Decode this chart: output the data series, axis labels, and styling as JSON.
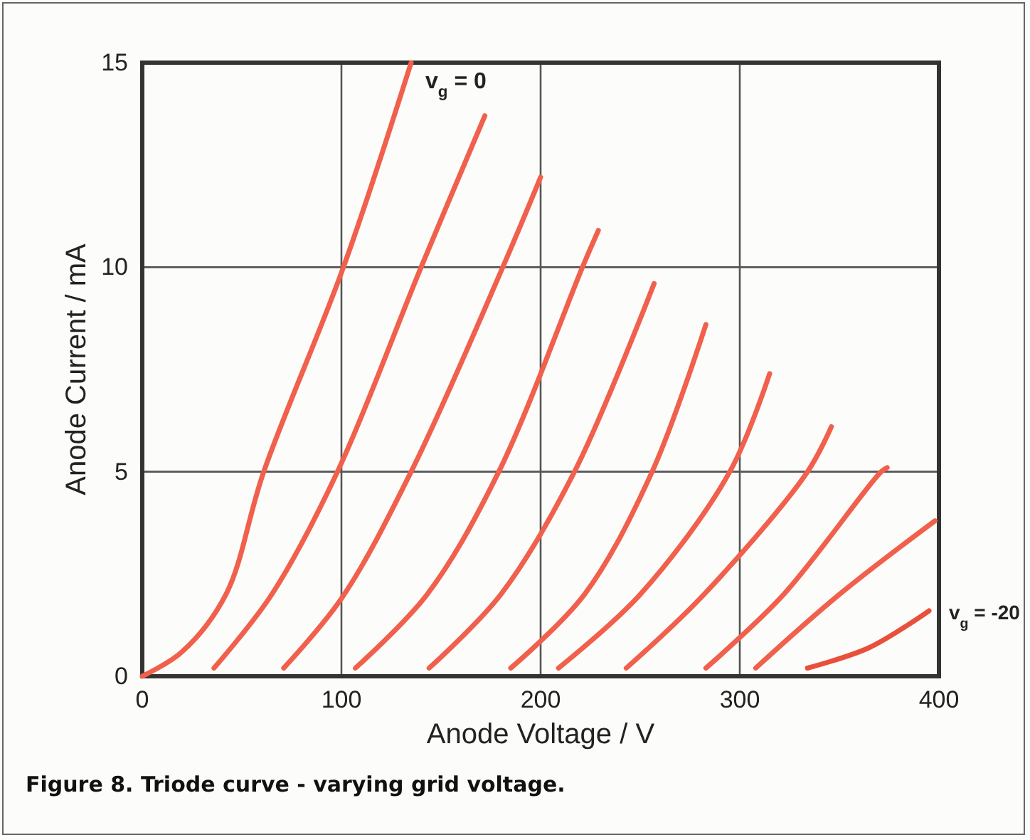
{
  "chart_data": {
    "type": "line",
    "title": "Figure 8. Triode curve - varying grid voltage.",
    "xlabel": "Anode Voltage / V",
    "ylabel": "Anode Current / mA",
    "xlim": [
      0,
      400
    ],
    "xticks": [
      0,
      100,
      200,
      300,
      400
    ],
    "ylim": [
      0,
      15
    ],
    "yticks": [
      0,
      5,
      10,
      15
    ],
    "grid": true,
    "marker": "none",
    "line_style": "solid",
    "series": [
      {
        "color": "#f0604c",
        "x": [
          0,
          20,
          42,
          61,
          101,
          135
        ],
        "values": [
          0,
          0.6,
          2,
          5,
          10,
          15
        ]
      },
      {
        "color": "#f0604c",
        "x": [
          36,
          65,
          98,
          140,
          172
        ],
        "values": [
          0.2,
          2,
          5,
          10,
          13.7
        ]
      },
      {
        "color": "#f0604c",
        "x": [
          71,
          100,
          135,
          181,
          200
        ],
        "values": [
          0.2,
          1.9,
          5,
          10,
          12.2
        ]
      },
      {
        "color": "#f0604c",
        "x": [
          107,
          143,
          179,
          221,
          229
        ],
        "values": [
          0.2,
          2,
          5,
          10,
          10.9
        ]
      },
      {
        "color": "#f0604c",
        "x": [
          144,
          180,
          217,
          257
        ],
        "values": [
          0.2,
          2,
          5,
          9.6
        ]
      },
      {
        "color": "#f0604c",
        "x": [
          185,
          222,
          256,
          283
        ],
        "values": [
          0.2,
          2,
          5,
          8.6
        ]
      },
      {
        "color": "#f0604c",
        "x": [
          209,
          250,
          295,
          315
        ],
        "values": [
          0.2,
          2,
          5,
          7.4
        ]
      },
      {
        "color": "#f0604c",
        "x": [
          243,
          282,
          334,
          346
        ],
        "values": [
          0.2,
          2,
          5,
          6.1
        ]
      },
      {
        "color": "#f0604c",
        "x": [
          283,
          322,
          371,
          374
        ],
        "values": [
          0.2,
          2,
          5,
          5.1
        ]
      },
      {
        "color": "#f0604c",
        "x": [
          308,
          350,
          398
        ],
        "values": [
          0.2,
          2,
          3.8
        ]
      },
      {
        "color": "#e8503c",
        "x": [
          334,
          365,
          395
        ],
        "values": [
          0.2,
          0.7,
          1.6
        ]
      }
    ],
    "annotations": [
      {
        "text": "v$_{g}$ = 0",
        "x": 135,
        "y": 15
      },
      {
        "text": "v$_{g}$ = -20",
        "x": 395,
        "y": 1.6
      }
    ]
  }
}
